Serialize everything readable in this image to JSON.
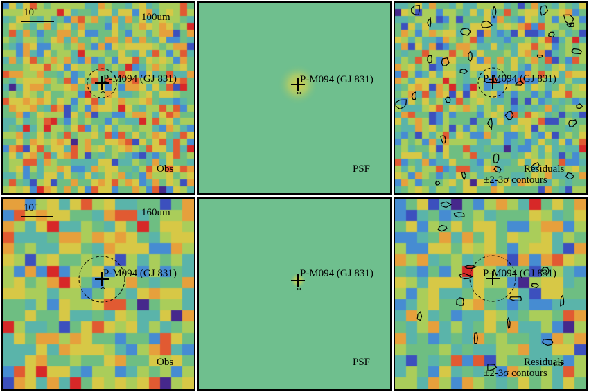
{
  "source_name": "P-M094 (GJ 831)",
  "scale_bar_label": "10\"",
  "rows": [
    {
      "band": "100um",
      "panels": [
        {
          "id": "obs",
          "corner_label": "Obs"
        },
        {
          "id": "psf",
          "corner_label": "PSF"
        },
        {
          "id": "residuals",
          "corner_label": "Residuals",
          "corner_sublabel": "±2-3σ contours"
        }
      ]
    },
    {
      "band": "160um",
      "panels": [
        {
          "id": "obs",
          "corner_label": "Obs"
        },
        {
          "id": "psf",
          "corner_label": "PSF"
        },
        {
          "id": "residuals",
          "corner_label": "Residuals",
          "corner_sublabel": "±2-3σ contours"
        }
      ]
    }
  ],
  "colors": {
    "background_green": "#6fbf8e",
    "frame": "#000000"
  }
}
